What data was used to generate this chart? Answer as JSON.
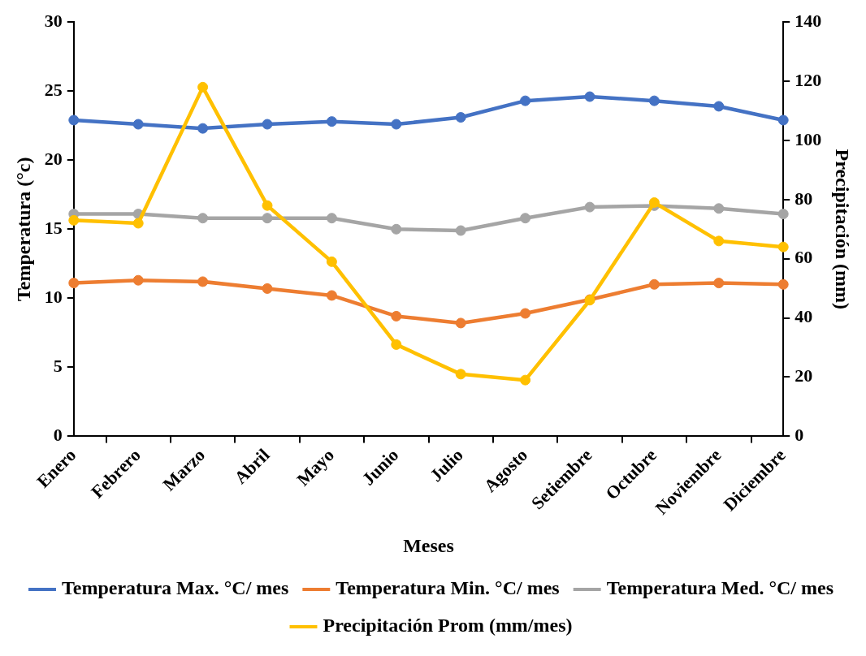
{
  "chart_data": {
    "type": "line",
    "xlabel": "Meses",
    "ylabel": "Temperatura (°c)",
    "y2label": "Precipitación (mm)",
    "categories": [
      "Enero",
      "Febrero",
      "Marzo",
      "Abril",
      "Mayo",
      "Junio",
      "Julio",
      "Agosto",
      "Setiembre",
      "Octubre",
      "Noviembre",
      "Diciembre"
    ],
    "series": [
      {
        "name": "Temperatura Max. °C/ mes",
        "color": "#4472c4",
        "values": [
          22.9,
          22.6,
          22.3,
          22.6,
          22.8,
          22.6,
          23.1,
          24.3,
          24.6,
          24.3,
          23.9,
          22.9
        ]
      },
      {
        "name": "Temperatura Min. °C/ mes",
        "color": "#ed7d31",
        "values": [
          11.1,
          11.3,
          11.2,
          10.7,
          10.2,
          8.7,
          8.2,
          8.9,
          9.9,
          11.0,
          11.1,
          11.0
        ]
      },
      {
        "name": "Temperatura Med. °C/ mes",
        "color": "#a5a5a5",
        "values": [
          16.1,
          16.1,
          15.8,
          15.8,
          15.8,
          15.0,
          14.9,
          15.8,
          16.6,
          16.7,
          16.5,
          16.1
        ]
      },
      {
        "name": "Precipitación Prom (mm/mes)",
        "color": "#ffc000",
        "axis": "y2",
        "values": [
          73,
          72,
          118,
          78,
          59,
          31,
          21,
          19,
          46,
          79,
          66,
          64
        ]
      }
    ],
    "ylim": [
      0,
      30
    ],
    "yticks": [
      0,
      5,
      10,
      15,
      20,
      25,
      30
    ],
    "y2lim": [
      0,
      140
    ],
    "y2ticks": [
      0,
      20,
      40,
      60,
      80,
      100,
      120,
      140
    ],
    "grid": false,
    "legend": "bottom",
    "marker": "circle",
    "line_style": "solid"
  }
}
